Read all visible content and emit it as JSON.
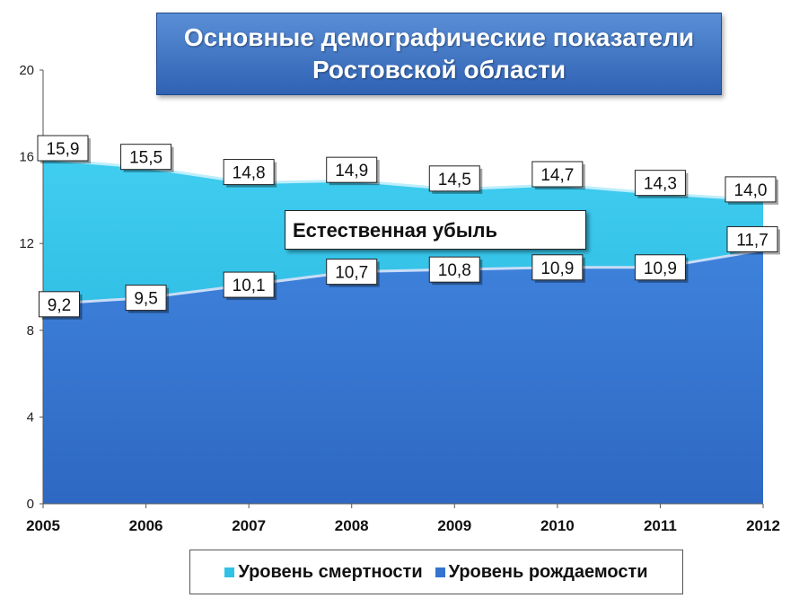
{
  "title_lines": [
    "Основные демографические показатели",
    "Ростовской области"
  ],
  "annotation": "Естественная  убыль",
  "colors": {
    "death_fill": "#2fc2e6",
    "birth_fill": "#3474cf",
    "label_border": "#222222"
  },
  "chart_data": {
    "type": "area",
    "x": [
      "2005",
      "2006",
      "2007",
      "2008",
      "2009",
      "2010",
      "2011",
      "2012"
    ],
    "ylim": [
      0,
      20
    ],
    "yticks": [
      "0",
      "4",
      "8",
      "12",
      "16",
      "20"
    ],
    "series": [
      {
        "name": "Уровень смертности",
        "values": [
          15.9,
          15.5,
          14.8,
          14.9,
          14.5,
          14.7,
          14.3,
          14.0
        ],
        "labels": [
          "15,9",
          "15,5",
          "14,8",
          "14,9",
          "14,5",
          "14,7",
          "14,3",
          "14,0"
        ]
      },
      {
        "name": "Уровень рождаемости",
        "values": [
          9.2,
          9.5,
          10.1,
          10.7,
          10.8,
          10.9,
          10.9,
          11.7
        ],
        "labels": [
          "9,2",
          "9,5",
          "10,1",
          "10,7",
          "10,8",
          "10,9",
          "10,9",
          "11,7"
        ]
      }
    ],
    "legend_position": "bottom"
  }
}
